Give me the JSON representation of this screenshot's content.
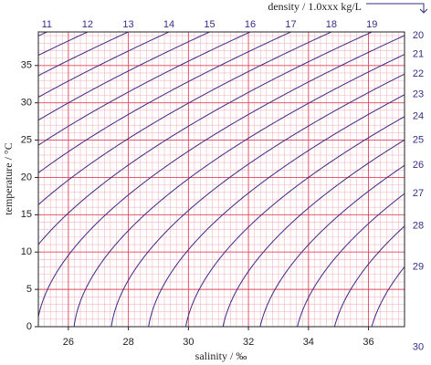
{
  "chart_data": {
    "type": "contour",
    "title": "density / 1.0xxx kg/L",
    "x_label": "salinity / ‰",
    "y_label": "temperature / °C",
    "levels": [
      11,
      12,
      13,
      14,
      15,
      16,
      17,
      18,
      19,
      20,
      21,
      22,
      23,
      24,
      25,
      26,
      27,
      28,
      29,
      30
    ],
    "color": "#3b2a86",
    "xlim": [
      25,
      37.2
    ],
    "xticks": [
      26,
      28,
      30,
      32,
      34,
      36
    ],
    "ylim": [
      0,
      39.5
    ],
    "yticks": [
      0,
      5,
      10,
      15,
      20,
      25,
      30,
      35
    ],
    "grid": true,
    "grid_color": "#e2475c",
    "minor_grid_color": "#f4b6bf"
  }
}
